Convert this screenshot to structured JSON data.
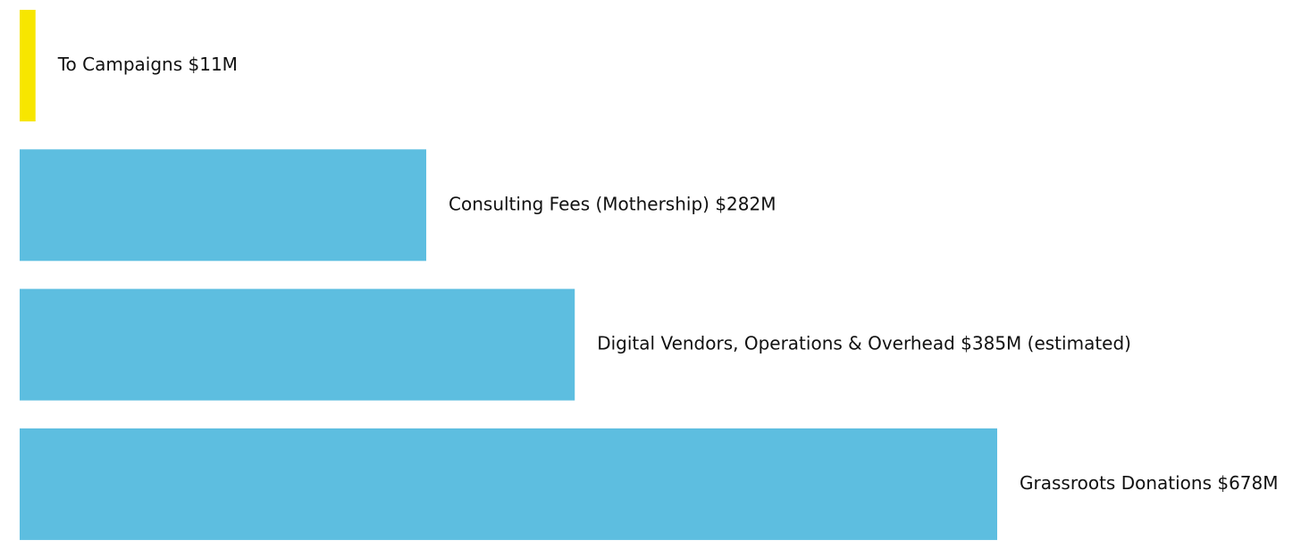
{
  "chart_data": {
    "type": "bar",
    "orientation": "horizontal",
    "categories": [
      "To Campaigns",
      "Consulting Fees (Mothership)",
      "Digital Vendors, Operations & Overhead",
      "Grassroots Donations"
    ],
    "values": [
      11,
      282,
      385,
      678
    ],
    "unit": "$M",
    "labels": [
      "To Campaigns $11M",
      "Consulting Fees (Mothership) $282M",
      "Digital Vendors, Operations & Overhead $385M (estimated)",
      "Grassroots Donations $678M"
    ],
    "colors": [
      "#f7e600",
      "#5dbee0",
      "#5dbee0",
      "#5dbee0"
    ],
    "title": "",
    "xlabel": "",
    "ylabel": "",
    "grid": false,
    "axes_visible": false,
    "legend": "none"
  }
}
